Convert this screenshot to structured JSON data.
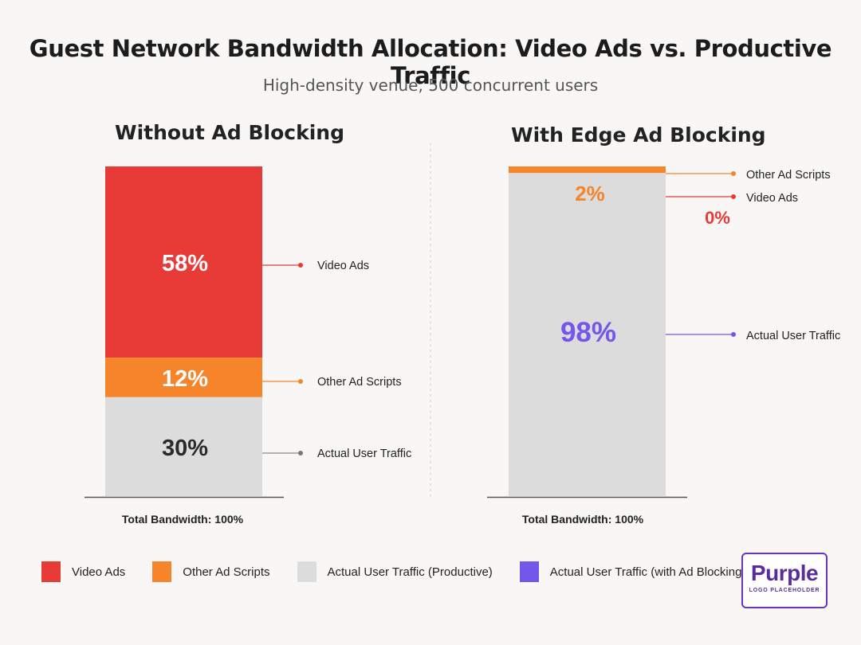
{
  "title": "Guest Network Bandwidth Allocation: Video Ads vs. Productive Traffic",
  "subtitle": "High-density venue, 500 concurrent users",
  "chart_data": [
    {
      "type": "bar",
      "stacked": true,
      "title": "Without Ad Blocking",
      "footer": "Total Bandwidth: 100%",
      "ylim": [
        0,
        100
      ],
      "segments": [
        {
          "name": "Video Ads",
          "value": 58,
          "label": "58%",
          "color": "#e83a36",
          "label_color": "#ffffff"
        },
        {
          "name": "Other Ad Scripts",
          "value": 12,
          "label": "12%",
          "color": "#f5842a",
          "label_color": "#ffffff"
        },
        {
          "name": "Actual User Traffic",
          "value": 30,
          "label": "30%",
          "color": "#dcdcdc",
          "label_color": "#2a2a2a"
        }
      ]
    },
    {
      "type": "bar",
      "stacked": true,
      "title": "With Edge Ad Blocking",
      "footer": "Total Bandwidth: 100%",
      "ylim": [
        0,
        100
      ],
      "segments": [
        {
          "name": "Other Ad Scripts",
          "value": 2,
          "label": "2%",
          "color": "#f5842a",
          "label_color": "#f5842a"
        },
        {
          "name": "Video Ads",
          "value": 0,
          "label": "0%",
          "color": "#e83a36",
          "label_color": "#e83a36"
        },
        {
          "name": "Actual User Traffic",
          "value": 98,
          "label": "98%",
          "color": "#dcdcdc",
          "label_color": "#7356ea"
        }
      ]
    }
  ],
  "legend": [
    {
      "label": "Video Ads",
      "color": "#e83a36"
    },
    {
      "label": "Other Ad Scripts",
      "color": "#f5842a"
    },
    {
      "label": "Actual User Traffic (Productive)",
      "color": "#dcdcdc"
    },
    {
      "label": "Actual User Traffic (with Ad Blocking)",
      "color": "#7356ea"
    }
  ],
  "logo": {
    "word": "Purple",
    "tag": "LOGO PLACEHOLDER"
  }
}
